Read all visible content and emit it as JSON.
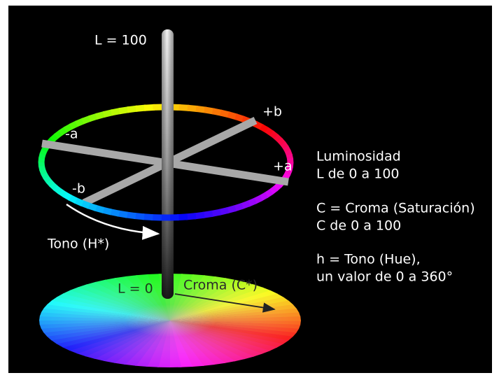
{
  "labels": {
    "l_100": "L = 100",
    "plus_b": "+b",
    "minus_a": "-a",
    "plus_a": "+a",
    "minus_b": "-b",
    "tono": "Tono (H*)",
    "l_0": "L = 0",
    "croma": "Croma (C*)"
  },
  "legend": [
    "Luminosidad",
    "L de 0 a 100",
    "C = Croma (Saturación)",
    "C de 0 a 100",
    "h = Tono (Hue),",
    "un valor de 0 a 360°"
  ]
}
